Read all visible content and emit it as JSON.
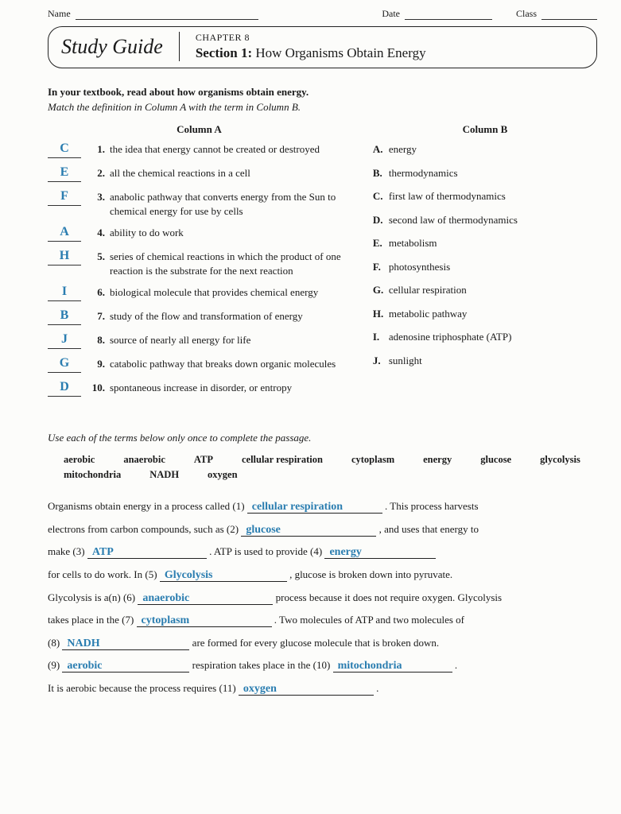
{
  "header": {
    "name_label": "Name",
    "date_label": "Date",
    "class_label": "Class"
  },
  "banner": {
    "study_guide": "Study Guide",
    "chapter": "CHAPTER 8",
    "section_bold": "Section 1:",
    "section_title": "How Organisms Obtain Energy"
  },
  "intro": {
    "bold": "In your textbook, read about how organisms obtain energy.",
    "italic": "Match the definition in Column A with the term in Column B."
  },
  "columnA_head": "Column A",
  "columnB_head": "Column B",
  "matches": [
    {
      "ans": "C",
      "num": "1.",
      "def": "the idea that energy cannot be created or destroyed"
    },
    {
      "ans": "E",
      "num": "2.",
      "def": "all the chemical reactions in a cell"
    },
    {
      "ans": "F",
      "num": "3.",
      "def": "anabolic pathway that converts energy from the Sun to chemical energy for use by cells"
    },
    {
      "ans": "A",
      "num": "4.",
      "def": "ability to do work"
    },
    {
      "ans": "H",
      "num": "5.",
      "def": "series of chemical reactions in which the product of one reaction is the substrate for the next reaction"
    },
    {
      "ans": "I",
      "num": "6.",
      "def": "biological molecule that provides chemical energy"
    },
    {
      "ans": "B",
      "num": "7.",
      "def": "study of the flow and transformation of energy"
    },
    {
      "ans": "J",
      "num": "8.",
      "def": "source of nearly all energy for life"
    },
    {
      "ans": "G",
      "num": "9.",
      "def": "catabolic pathway that breaks down organic molecules"
    },
    {
      "ans": "D",
      "num": "10.",
      "def": "spontaneous increase in disorder, or entropy"
    }
  ],
  "termsB": [
    {
      "letter": "A.",
      "term": "energy"
    },
    {
      "letter": "B.",
      "term": "thermodynamics"
    },
    {
      "letter": "C.",
      "term": "first law of thermodynamics"
    },
    {
      "letter": "D.",
      "term": "second law of thermodynamics"
    },
    {
      "letter": "E.",
      "term": "metabolism"
    },
    {
      "letter": "F.",
      "term": "photosynthesis"
    },
    {
      "letter": "G.",
      "term": "cellular respiration"
    },
    {
      "letter": "H.",
      "term": "metabolic pathway"
    },
    {
      "letter": "I.",
      "term": "adenosine triphosphate (ATP)"
    },
    {
      "letter": "J.",
      "term": "sunlight"
    }
  ],
  "section2_intro": "Use each of the terms below only once to complete the passage.",
  "wordbank": [
    "aerobic",
    "anaerobic",
    "ATP",
    "cellular respiration",
    "cytoplasm",
    "energy",
    "glucose",
    "glycolysis",
    "mitochondria",
    "NADH",
    "oxygen"
  ],
  "passage": {
    "p1a": "Organisms obtain energy in a process called (1)",
    "b1": "cellular respiration",
    "p1b": ". This process harvests",
    "p2a": "electrons from carbon compounds, such as (2)",
    "b2": "glucose",
    "p2b": ", and uses that energy to",
    "p3a": "make (3)",
    "b3": "ATP",
    "p3b": ". ATP is used to provide (4)",
    "b4": "energy",
    "p4a": "for cells to do work. In (5)",
    "b5": "Glycolysis",
    "p4b": ", glucose is broken down into pyruvate.",
    "p5a": "Glycolysis is a(n) (6)",
    "b6": "anaerobic",
    "p5b": "process because it does not require oxygen. Glycolysis",
    "p6a": "takes place in the (7)",
    "b7": "cytoplasm",
    "p6b": ". Two molecules of ATP and two molecules of",
    "p7a": "(8)",
    "b8": "NADH",
    "p7b": "are formed for every glucose molecule that is broken down.",
    "p8a": "(9)",
    "b9": "aerobic",
    "p8b": "respiration takes place in the (10)",
    "b10": "mitochondria",
    "p8c": ".",
    "p9a": "It is aerobic because the process requires (11)",
    "b11": "oxygen",
    "p9b": "."
  },
  "colors": {
    "handwriting": "#2a7db0",
    "text": "#1a1a1a",
    "background": "#fcfcfa"
  }
}
